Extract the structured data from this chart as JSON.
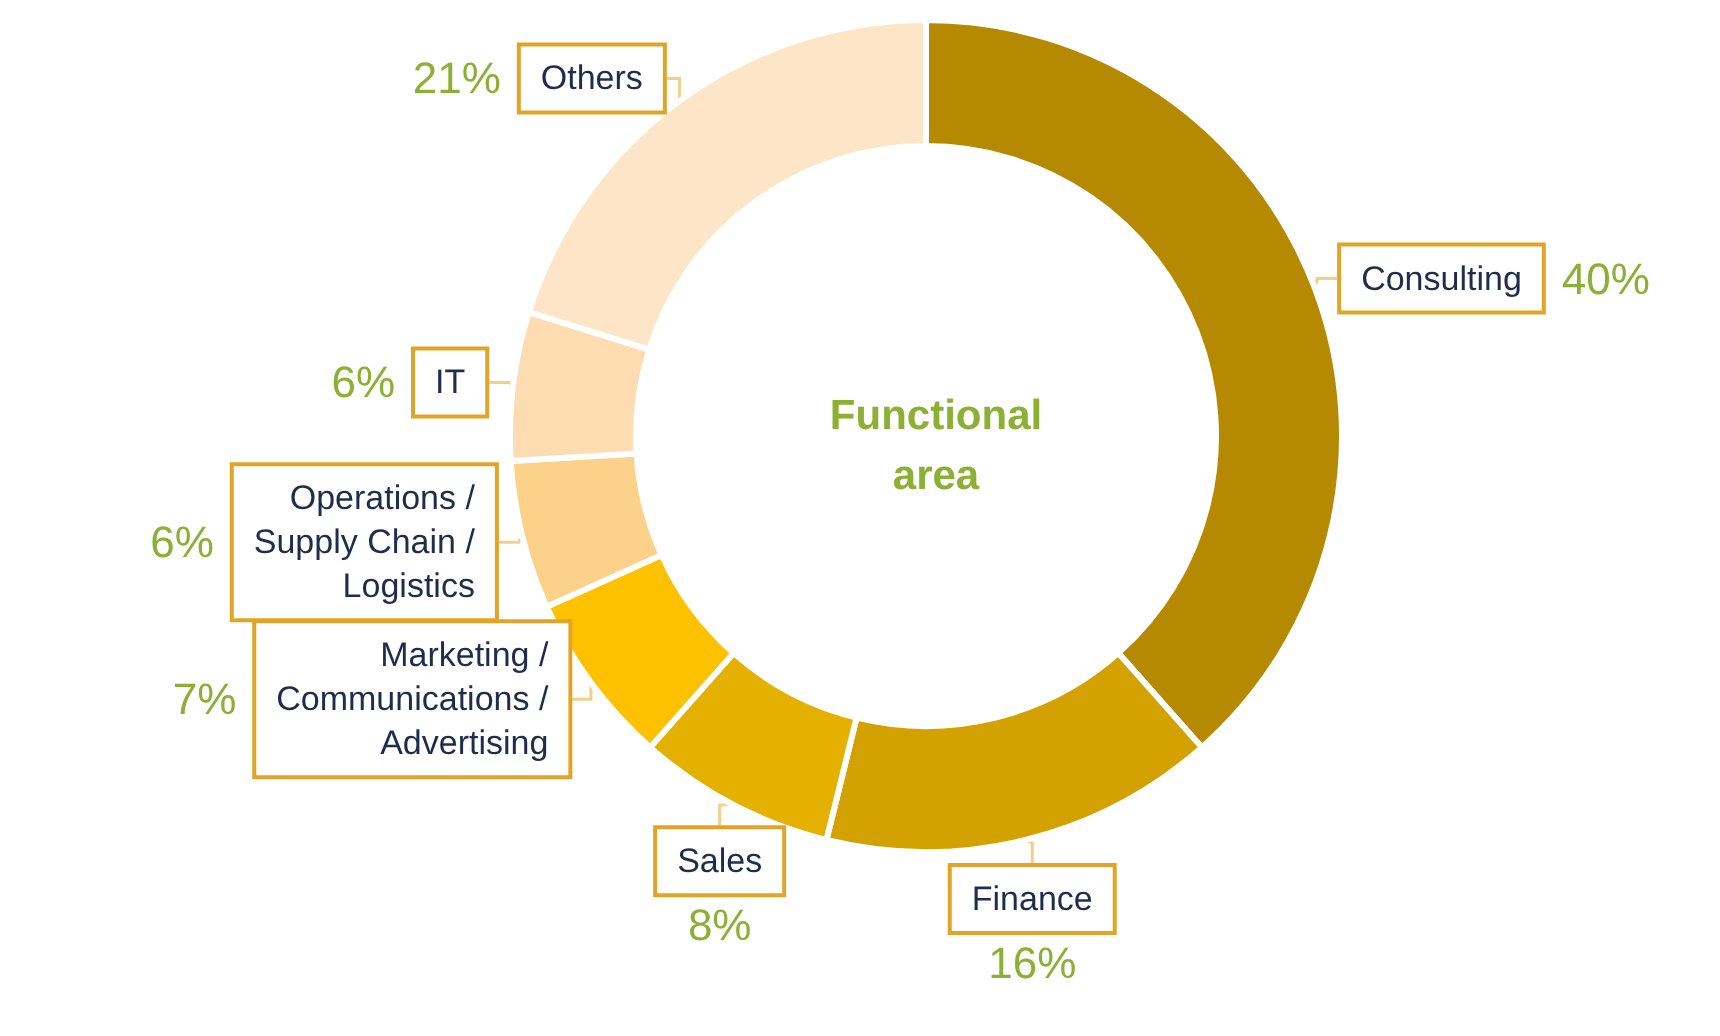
{
  "chart_data": {
    "type": "donut",
    "title": "Functional area",
    "categories": [
      "Consulting",
      "Finance",
      "Sales",
      "Marketing / Communications / Advertising",
      "Operations / Supply Chain / Logistics",
      "IT",
      "Others"
    ],
    "values": [
      40,
      16,
      8,
      7,
      6,
      6,
      21
    ],
    "colors": [
      "#b58900",
      "#d4a200",
      "#e5b100",
      "#fdc100",
      "#fcd189",
      "#fcdcb0",
      "#fde6c8"
    ],
    "value_labels": [
      "40%",
      "16%",
      "8%",
      "7%",
      "6%",
      "6%",
      "21%"
    ]
  }
}
